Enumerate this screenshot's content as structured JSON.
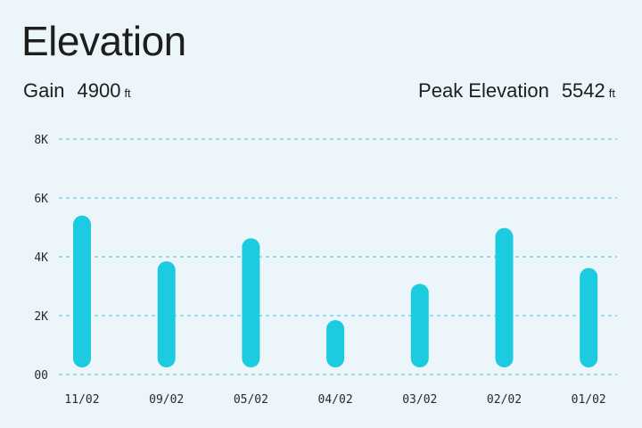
{
  "title": "Elevation",
  "stats": {
    "gain": {
      "label": "Gain",
      "value": "4900",
      "unit": "ft"
    },
    "peak": {
      "label": "Peak Elevation",
      "value": "5542",
      "unit": "ft"
    }
  },
  "colors": {
    "bar": "#1ccbe0",
    "grid": "#3cc7dc",
    "background": "#ecf5f9"
  },
  "chart_data": {
    "type": "bar",
    "categories": [
      "11/02",
      "09/02",
      "05/02",
      "04/02",
      "03/02",
      "02/02",
      "01/02"
    ],
    "values": [
      5400,
      3850,
      4630,
      1850,
      3080,
      4980,
      3620
    ],
    "y_ticks": [
      0,
      2000,
      4000,
      6000,
      8000
    ],
    "y_tick_labels": [
      "00",
      "2K",
      "4K",
      "6K",
      "8K"
    ],
    "ylim": [
      0,
      8000
    ],
    "grid": true,
    "xlabel": "",
    "ylabel": ""
  }
}
